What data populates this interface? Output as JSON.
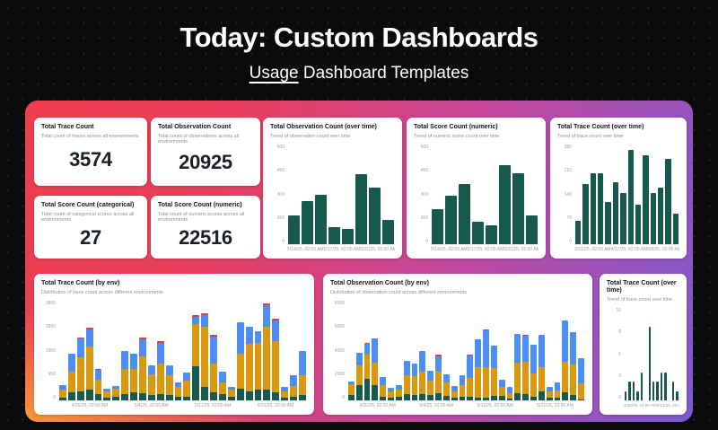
{
  "page": {
    "title": "Today: Custom Dashboards",
    "subtitle_underlined": "Usage",
    "subtitle_rest": " Dashboard Templates"
  },
  "colors": {
    "bar_green": "#17594C",
    "bar_orange": "#D9980D",
    "bar_blue": "#4D8DF6",
    "bar_red": "#DE3B3B",
    "panel_red": "#EE3D4C",
    "panel_orange": "#F89D36",
    "panel_purple": "#7C5AD0",
    "card_bg": "#FFFFFF"
  },
  "stat_cards": [
    {
      "title": "Total Trace Count",
      "description": "Total count of traces across all environments",
      "value": "3574"
    },
    {
      "title": "Total Observation Count",
      "description": "Total count of observations across all environments",
      "value": "20925"
    },
    {
      "title": "Total Score Count (categorical)",
      "description": "Total count of categorical scores across all environments",
      "value": "27"
    },
    {
      "title": "Total Score Count (numeric)",
      "description": "Total count of numeric scores across all environments",
      "value": "22516"
    }
  ],
  "chart_data": [
    {
      "id": "observation-count-over-time",
      "type": "bar",
      "title": "Total Observation Count (over time)",
      "subtitle": "Trend of observation count over time",
      "ylim": [
        0,
        600
      ],
      "yticks": [
        600,
        450,
        300,
        150,
        0
      ],
      "values": [
        175,
        260,
        300,
        105,
        90,
        420,
        340,
        145
      ],
      "xlabels": [
        "5/14/25, 02:00 AM",
        "5/17/25, 02:00 AM",
        "5/21/25, 02:00 AM"
      ],
      "legend": "none",
      "grid": "off"
    },
    {
      "id": "score-count-numeric-over-time",
      "type": "bar",
      "title": "Total Score Count (numeric)",
      "subtitle": "Trend of numeric score count over time",
      "ylim": [
        0,
        600
      ],
      "yticks": [
        600,
        450,
        300,
        150,
        0
      ],
      "values": [
        210,
        295,
        360,
        135,
        115,
        475,
        425,
        175
      ],
      "xlabels": [
        "5/14/25, 02:00 AM",
        "5/17/25, 02:00 AM",
        "5/21/25, 02:00 AM"
      ],
      "legend": "none",
      "grid": "off"
    },
    {
      "id": "trace-count-over-time-top",
      "type": "bar",
      "title": "Total Trace Count (over time)",
      "subtitle": "Trend of trace count over time",
      "ylim": [
        0,
        280
      ],
      "yticks": [
        280,
        210,
        140,
        70,
        0
      ],
      "values": [
        65,
        170,
        200,
        200,
        120,
        175,
        145,
        265,
        110,
        250,
        145,
        160,
        240,
        85
      ],
      "xlabels": [
        "3/31/25, 02:00 AM",
        "4/17/25, 02:00 AM",
        "5/8/25, 02:00 AM"
      ],
      "legend": "none",
      "grid": "off"
    },
    {
      "id": "trace-count-by-env",
      "type": "stacked_bar",
      "title": "Total Trace Count (by env)",
      "subtitle": "Distribution of trace count across different environments",
      "ylim": [
        0,
        3800
      ],
      "yticks": [
        3800,
        2850,
        1900,
        950,
        0
      ],
      "segment_colors": [
        "green",
        "orange",
        "blue",
        "red"
      ],
      "stacks": [
        [
          120,
          300,
          180,
          0
        ],
        [
          300,
          800,
          700,
          0
        ],
        [
          350,
          1300,
          700,
          60
        ],
        [
          400,
          1650,
          650,
          80
        ],
        [
          250,
          550,
          350,
          60
        ],
        [
          100,
          250,
          100,
          0
        ],
        [
          150,
          300,
          100,
          0
        ],
        [
          250,
          950,
          700,
          0
        ],
        [
          300,
          900,
          600,
          0
        ],
        [
          280,
          1400,
          650,
          70
        ],
        [
          200,
          800,
          350,
          0
        ],
        [
          250,
          1150,
          800,
          60
        ],
        [
          200,
          750,
          400,
          0
        ],
        [
          150,
          350,
          200,
          0
        ],
        [
          150,
          600,
          300,
          0
        ],
        [
          1300,
          1600,
          300,
          60
        ],
        [
          500,
          2300,
          450,
          70
        ],
        [
          300,
          1100,
          1050,
          50
        ],
        [
          250,
          450,
          400,
          0
        ],
        [
          150,
          250,
          100,
          0
        ],
        [
          450,
          1350,
          1200,
          0
        ],
        [
          350,
          1800,
          650,
          0
        ],
        [
          400,
          1800,
          450,
          0
        ],
        [
          400,
          2400,
          850,
          70
        ],
        [
          300,
          1950,
          800,
          60
        ],
        [
          100,
          250,
          150,
          0
        ],
        [
          150,
          400,
          400,
          0
        ],
        [
          200,
          750,
          950,
          0
        ]
      ],
      "xlabels": [
        "4/26/25, 02:00 AM",
        "5/4/25, 02:00 AM",
        "5/11/25, 02:00 AM",
        "5/21/25, 02:00 AM"
      ],
      "legend": "none",
      "grid": "off"
    },
    {
      "id": "observation-count-by-env",
      "type": "stacked_bar",
      "title": "Total Observation Count (by env)",
      "subtitle": "Distribution of observation count across different environments",
      "ylim": [
        0,
        8000
      ],
      "yticks": [
        8000,
        6000,
        4000,
        2000,
        0
      ],
      "segment_colors": [
        "green",
        "orange",
        "blue",
        "red"
      ],
      "stacks": [
        [
          400,
          900,
          200,
          0
        ],
        [
          1200,
          1600,
          1000,
          0
        ],
        [
          1750,
          1900,
          900,
          100
        ],
        [
          1250,
          1800,
          1900,
          50
        ],
        [
          300,
          900,
          650,
          60
        ],
        [
          200,
          500,
          300,
          0
        ],
        [
          300,
          600,
          350,
          0
        ],
        [
          500,
          1500,
          1150,
          0
        ],
        [
          450,
          1500,
          1000,
          0
        ],
        [
          500,
          1800,
          1700,
          0
        ],
        [
          400,
          1200,
          750,
          0
        ],
        [
          600,
          1700,
          1250,
          100
        ],
        [
          350,
          1100,
          650,
          0
        ],
        [
          250,
          500,
          400,
          0
        ],
        [
          300,
          900,
          800,
          0
        ],
        [
          300,
          1500,
          1800,
          60
        ],
        [
          200,
          2500,
          2200,
          0
        ],
        [
          250,
          2450,
          2900,
          100
        ],
        [
          350,
          2250,
          1800,
          0
        ],
        [
          350,
          700,
          600,
          0
        ],
        [
          150,
          450,
          500,
          0
        ],
        [
          600,
          2400,
          2350,
          0
        ],
        [
          500,
          2600,
          2100,
          50
        ],
        [
          300,
          1900,
          2300,
          0
        ],
        [
          750,
          1950,
          2600,
          0
        ],
        [
          250,
          450,
          350,
          0
        ],
        [
          200,
          600,
          650,
          0
        ],
        [
          650,
          2450,
          3350,
          0
        ],
        [
          400,
          2500,
          2600,
          0
        ],
        [
          100,
          1300,
          2000,
          0
        ]
      ],
      "xlabels": [
        "4/26/25, 02:00 AM",
        "5/4/25, 02:00 AM",
        "5/11/25, 02:00 AM",
        "5/21/25, 02:00 AM"
      ],
      "legend": "none",
      "grid": "off"
    },
    {
      "id": "trace-count-over-time-small",
      "type": "bar",
      "title": "Total Trace Count (over time)",
      "subtitle": "Trend of trace count over time",
      "ylim": [
        0,
        10
      ],
      "yticks": [
        10,
        8,
        5,
        3,
        0
      ],
      "values": [
        1,
        2,
        2,
        1,
        3,
        0,
        8,
        2,
        2,
        3,
        3,
        0,
        2,
        1
      ],
      "xlabels": [
        "4/26/25, 04:00 PM",
        "5/12/25, 02:00 AM"
      ],
      "legend": "none",
      "grid": "off"
    }
  ]
}
